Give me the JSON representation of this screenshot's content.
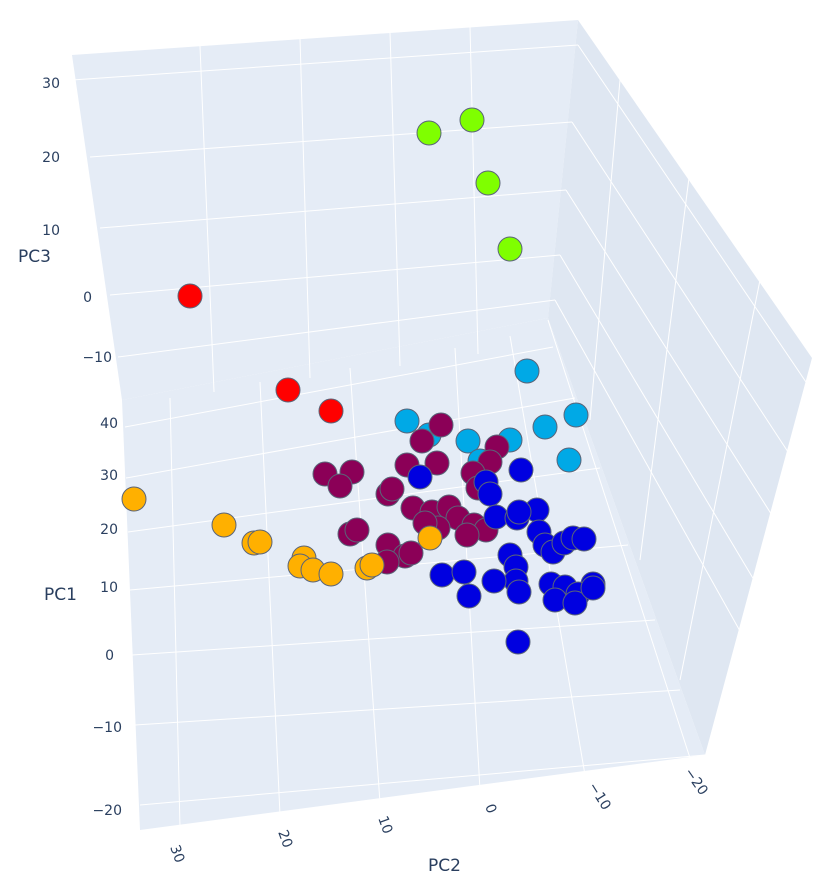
{
  "chart_data": {
    "type": "scatter",
    "projection": "3d",
    "xlabel": "PC2",
    "ylabel": "PC1",
    "zlabel": "PC3",
    "pc3_ticks": [
      "30",
      "20",
      "10",
      "0",
      "−10"
    ],
    "pc1_ticks": [
      "40",
      "30",
      "20",
      "10",
      "0",
      "−10",
      "−20"
    ],
    "pc2_ticks": [
      "30",
      "20",
      "10",
      "0",
      "−10",
      "−20"
    ],
    "colors": {
      "background": "#e5ecf6",
      "grid": "#ffffff",
      "marker_outline": "#5a6478"
    },
    "series": [
      {
        "color": "#7fff00",
        "points": [
          [
            429,
            133
          ],
          [
            472,
            120
          ],
          [
            488,
            183
          ],
          [
            510,
            249
          ]
        ]
      },
      {
        "color": "#ff0000",
        "points": [
          [
            190,
            296
          ],
          [
            288,
            390
          ],
          [
            331,
            411
          ]
        ]
      },
      {
        "color": "#00a9e6",
        "points": [
          [
            527,
            371
          ],
          [
            576,
            415
          ],
          [
            545,
            427
          ],
          [
            407,
            421
          ],
          [
            429,
            435
          ],
          [
            468,
            441
          ],
          [
            510,
            440
          ],
          [
            569,
            460
          ],
          [
            480,
            461
          ]
        ]
      },
      {
        "color": "#8b0057",
        "points": [
          [
            441,
            425
          ],
          [
            422,
            441
          ],
          [
            497,
            447
          ],
          [
            490,
            462
          ],
          [
            407,
            465
          ],
          [
            437,
            463
          ],
          [
            473,
            473
          ],
          [
            325,
            474
          ],
          [
            352,
            472
          ],
          [
            340,
            486
          ],
          [
            388,
            494
          ],
          [
            392,
            489
          ],
          [
            478,
            488
          ],
          [
            413,
            508
          ],
          [
            432,
            512
          ],
          [
            449,
            507
          ],
          [
            458,
            518
          ],
          [
            474,
            525
          ],
          [
            486,
            530
          ],
          [
            438,
            528
          ],
          [
            350,
            534
          ],
          [
            357,
            530
          ],
          [
            388,
            545
          ],
          [
            405,
            556
          ],
          [
            411,
            553
          ],
          [
            387,
            562
          ],
          [
            467,
            535
          ],
          [
            425,
            523
          ]
        ]
      },
      {
        "color": "#0000e0",
        "points": [
          [
            420,
            477
          ],
          [
            486,
            482
          ],
          [
            521,
            470
          ],
          [
            490,
            494
          ],
          [
            496,
            517
          ],
          [
            517,
            518
          ],
          [
            537,
            510
          ],
          [
            519,
            512
          ],
          [
            539,
            532
          ],
          [
            545,
            545
          ],
          [
            553,
            552
          ],
          [
            564,
            543
          ],
          [
            573,
            538
          ],
          [
            584,
            539
          ],
          [
            510,
            555
          ],
          [
            516,
            567
          ],
          [
            516,
            581
          ],
          [
            494,
            581
          ],
          [
            469,
            596
          ],
          [
            442,
            575
          ],
          [
            464,
            572
          ],
          [
            519,
            592
          ],
          [
            551,
            584
          ],
          [
            565,
            587
          ],
          [
            593,
            584
          ],
          [
            578,
            594
          ],
          [
            555,
            600
          ],
          [
            575,
            603
          ],
          [
            593,
            588
          ],
          [
            518,
            642
          ]
        ]
      },
      {
        "color": "#ffb000",
        "points": [
          [
            134,
            499
          ],
          [
            224,
            525
          ],
          [
            254,
            543
          ],
          [
            260,
            542
          ],
          [
            304,
            558
          ],
          [
            300,
            566
          ],
          [
            313,
            570
          ],
          [
            331,
            574
          ],
          [
            367,
            568
          ],
          [
            372,
            565
          ],
          [
            430,
            538
          ]
        ]
      }
    ]
  }
}
